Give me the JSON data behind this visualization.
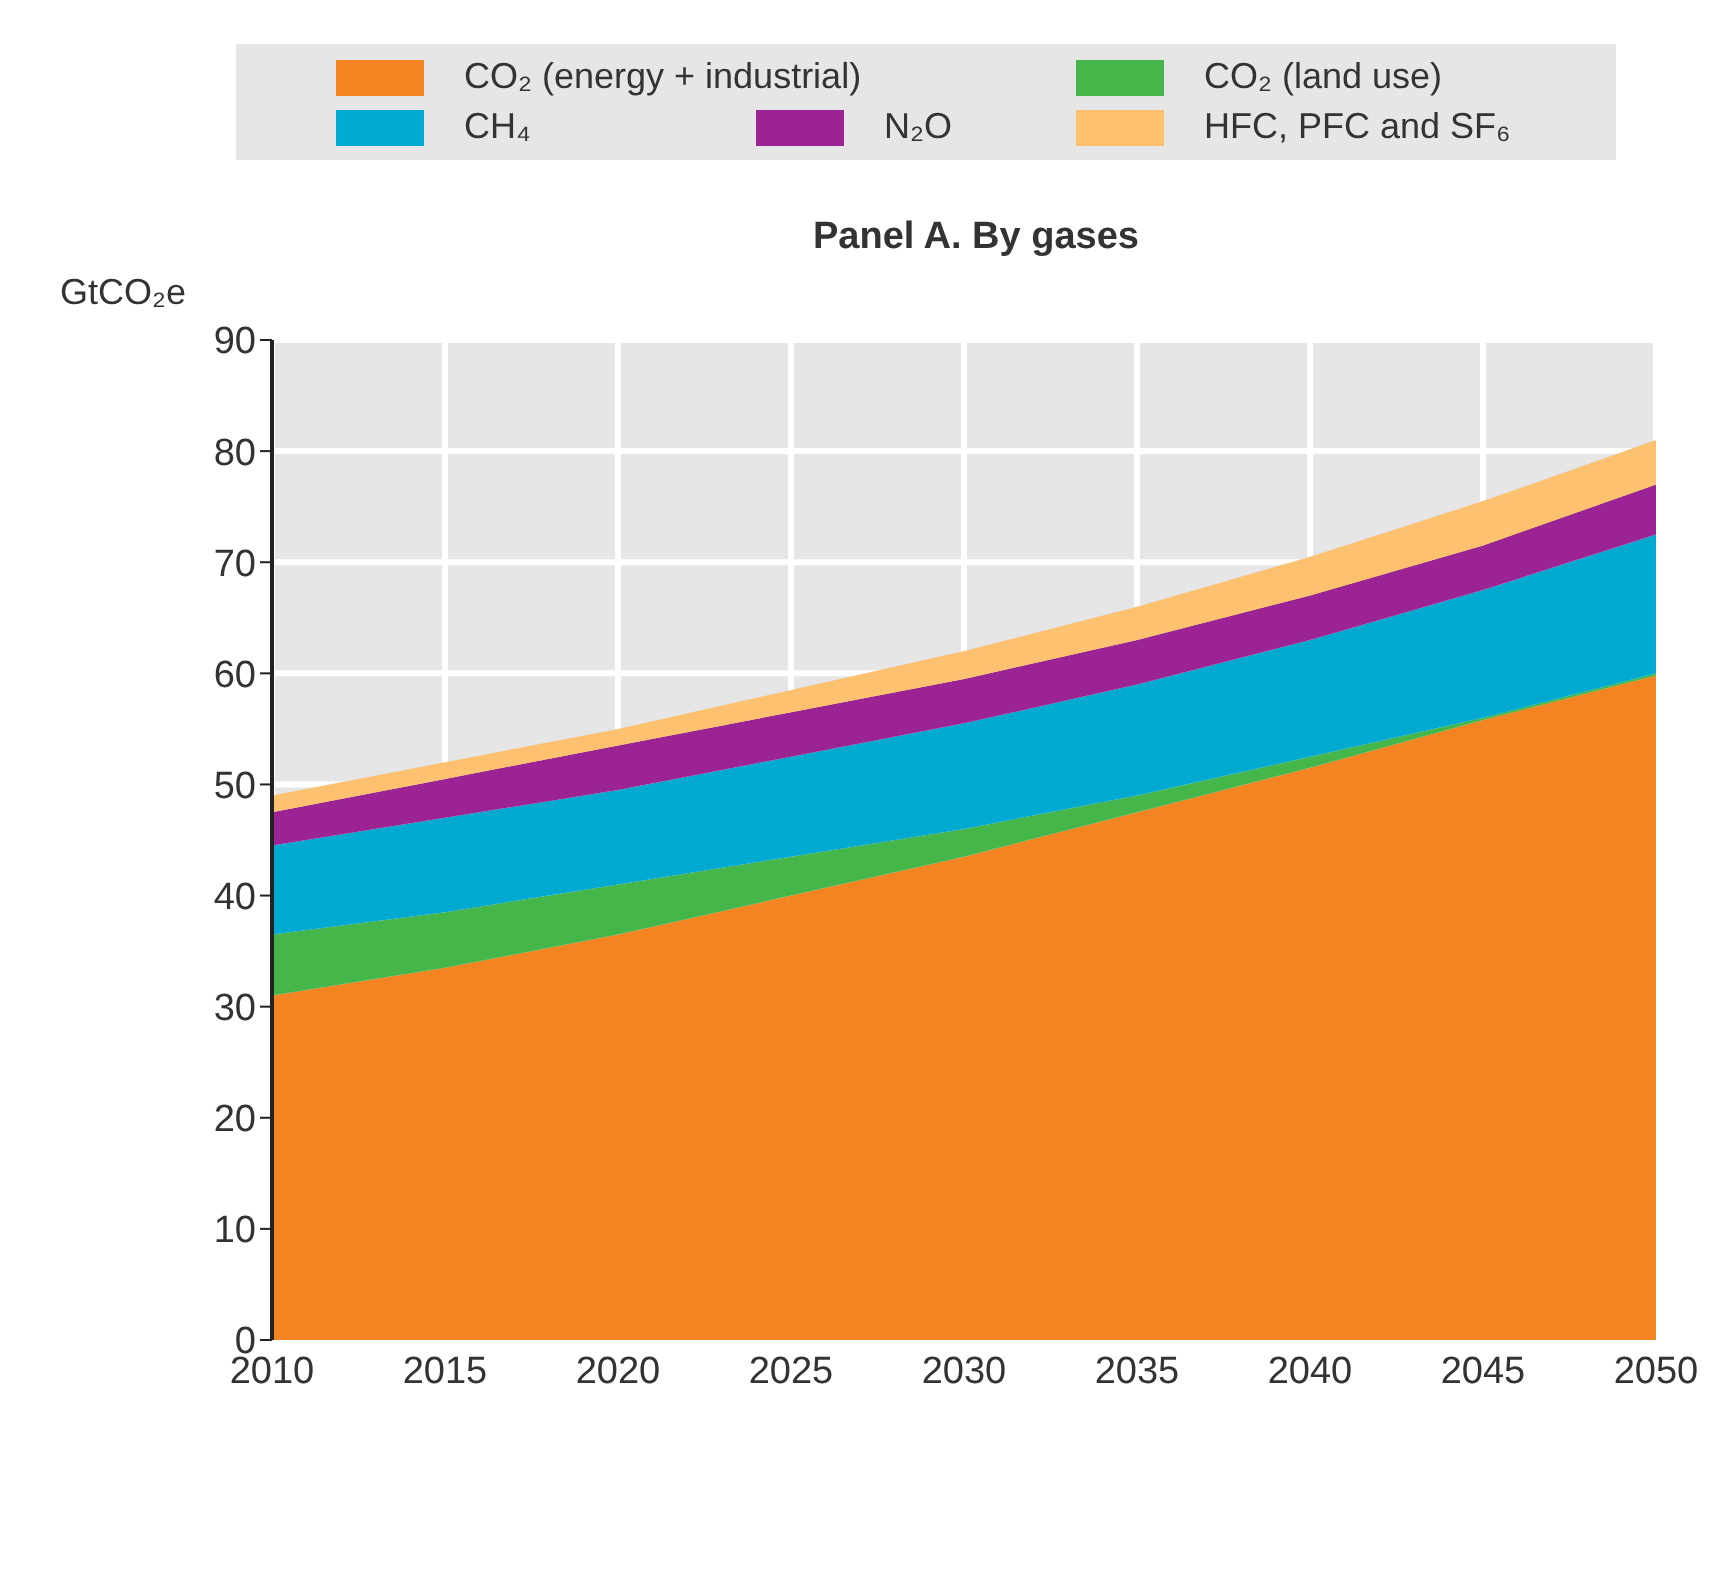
{
  "chart_data": {
    "type": "area",
    "stacked": true,
    "title": "Panel A. By gases",
    "ylabel": "GtCO₂e",
    "x": [
      2010,
      2015,
      2020,
      2025,
      2030,
      2035,
      2040,
      2045,
      2050
    ],
    "series": [
      {
        "name": "CO₂ (energy + industrial)",
        "color": "#f48422",
        "values": [
          31,
          33.5,
          36.5,
          40,
          43.5,
          47.5,
          51.5,
          55.8,
          59.8
        ]
      },
      {
        "name": "CO₂ (land use)",
        "color": "#45b649",
        "values": [
          5.5,
          5,
          4.5,
          3.5,
          2.5,
          1.5,
          1,
          0.2,
          0.2
        ]
      },
      {
        "name": "CH₄",
        "color": "#00a9cf",
        "values": [
          8,
          8.5,
          8.5,
          9,
          9.5,
          10,
          10.5,
          11.5,
          12.5
        ]
      },
      {
        "name": "N₂O",
        "color": "#9b2393",
        "values": [
          3,
          3.5,
          4,
          4,
          4,
          4,
          4,
          4,
          4.5
        ]
      },
      {
        "name": "HFC, PFC and SF₆",
        "color": "#fdc170",
        "values": [
          1.5,
          1.5,
          1.5,
          2,
          2.5,
          3,
          3.5,
          4,
          4
        ]
      }
    ],
    "xlim": [
      2010,
      2050
    ],
    "xticks": [
      2010,
      2015,
      2020,
      2025,
      2030,
      2035,
      2040,
      2045,
      2050
    ],
    "ylim": [
      0,
      90
    ],
    "yticks": [
      0,
      10,
      20,
      30,
      40,
      50,
      60,
      70,
      80,
      90
    ],
    "grid": true,
    "legend": "top"
  }
}
